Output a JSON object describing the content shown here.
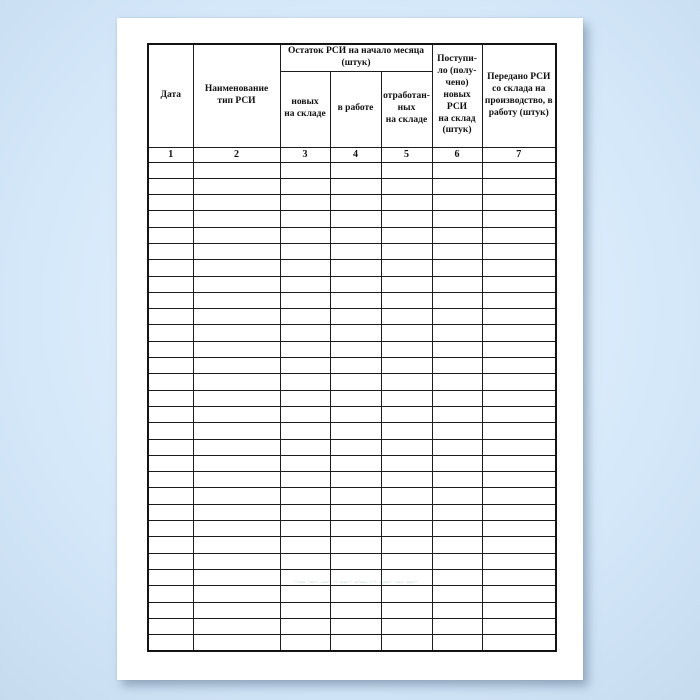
{
  "page": {
    "background_center_color": "#eaf5fe",
    "background_edge_color": "#c7dbef",
    "sheet_color": "#ffffff",
    "border_color": "#1c1c1c"
  },
  "table": {
    "group_header": {
      "remainder": "Остаток РСИ на начало месяца\n(штук)"
    },
    "headers": {
      "date": "Дата",
      "name": "Наименование\nтип РСИ",
      "new_in_stock": "новых\nна складе",
      "in_work": "в работе",
      "used_in_stock": "отработан-\nных\nна складе",
      "received": "Поступи-\nло (полу-\nчено)\nновых\nРСИ\nна склад\n(штук)",
      "transferred": "Передано РСИ\nсо склада на\nпроизводство, в\nработу (штук)"
    },
    "column_numbers": [
      "1",
      "2",
      "3",
      "4",
      "5",
      "6",
      "7"
    ],
    "column_count": 7,
    "empty_row_count": 30
  },
  "watermark": {
    "text": "··–– ·–·· ––· ·· ––·· –·–– ··· –––· ·–– ––··",
    "color": "#2e8b57"
  }
}
